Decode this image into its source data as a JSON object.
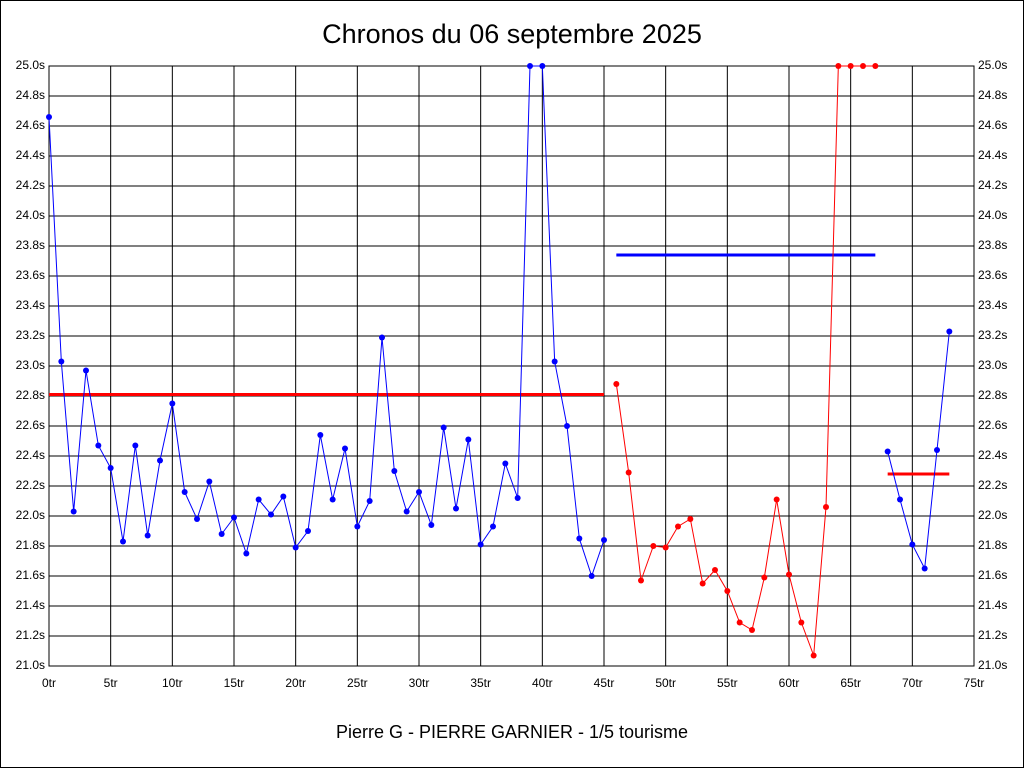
{
  "chart_data": {
    "type": "line",
    "title": "Chronos du 06 septembre 2025",
    "xlabel": "Pierre G - PIERRE GARNIER - 1/5 tourisme",
    "xlim": [
      0,
      75
    ],
    "xticks": [
      {
        "value": 0,
        "label": "0tr"
      },
      {
        "value": 5,
        "label": "5tr"
      },
      {
        "value": 10,
        "label": "10tr"
      },
      {
        "value": 15,
        "label": "15tr"
      },
      {
        "value": 20,
        "label": "20tr"
      },
      {
        "value": 25,
        "label": "25tr"
      },
      {
        "value": 30,
        "label": "30tr"
      },
      {
        "value": 35,
        "label": "35tr"
      },
      {
        "value": 40,
        "label": "40tr"
      },
      {
        "value": 45,
        "label": "45tr"
      },
      {
        "value": 50,
        "label": "50tr"
      },
      {
        "value": 55,
        "label": "55tr"
      },
      {
        "value": 60,
        "label": "60tr"
      },
      {
        "value": 65,
        "label": "65tr"
      },
      {
        "value": 70,
        "label": "70tr"
      },
      {
        "value": 75,
        "label": "75tr"
      }
    ],
    "ylim": [
      21.0,
      25.0
    ],
    "yticks": [
      {
        "value": 21.0,
        "label": "21.0s"
      },
      {
        "value": 21.2,
        "label": "21.2s"
      },
      {
        "value": 21.4,
        "label": "21.4s"
      },
      {
        "value": 21.6,
        "label": "21.6s"
      },
      {
        "value": 21.8,
        "label": "21.8s"
      },
      {
        "value": 22.0,
        "label": "22.0s"
      },
      {
        "value": 22.2,
        "label": "22.2s"
      },
      {
        "value": 22.4,
        "label": "22.4s"
      },
      {
        "value": 22.6,
        "label": "22.6s"
      },
      {
        "value": 22.8,
        "label": "22.8s"
      },
      {
        "value": 23.0,
        "label": "23.0s"
      },
      {
        "value": 23.2,
        "label": "23.2s"
      },
      {
        "value": 23.4,
        "label": "23.4s"
      },
      {
        "value": 23.6,
        "label": "23.6s"
      },
      {
        "value": 23.8,
        "label": "23.8s"
      },
      {
        "value": 24.0,
        "label": "24.0s"
      },
      {
        "value": 24.2,
        "label": "24.2s"
      },
      {
        "value": 24.4,
        "label": "24.4s"
      },
      {
        "value": 24.6,
        "label": "24.6s"
      },
      {
        "value": 24.8,
        "label": "24.8s"
      },
      {
        "value": 25.0,
        "label": "25.0s"
      }
    ],
    "grid": true,
    "series": [
      {
        "color": "#0000ff",
        "x": [
          0,
          1,
          2,
          3,
          4,
          5,
          6,
          7,
          8,
          9,
          10,
          11,
          12,
          13,
          14,
          15,
          16,
          17,
          18,
          19,
          20,
          21,
          22,
          23,
          24,
          25,
          26,
          27,
          28,
          29,
          30,
          31,
          32,
          33,
          34,
          35,
          36,
          37,
          38,
          39,
          40,
          41,
          42,
          43,
          44,
          45
        ],
        "values": [
          24.66,
          23.03,
          22.03,
          22.97,
          22.47,
          22.32,
          21.83,
          22.47,
          21.87,
          22.37,
          22.75,
          22.16,
          21.98,
          22.23,
          21.88,
          21.99,
          21.75,
          22.11,
          22.01,
          22.13,
          21.79,
          21.9,
          22.54,
          22.11,
          22.45,
          21.93,
          22.1,
          23.19,
          22.3,
          22.03,
          22.16,
          21.94,
          22.59,
          22.05,
          22.51,
          21.81,
          21.93,
          22.35,
          22.12,
          25.0,
          25.0,
          23.03,
          22.6,
          21.85,
          21.6,
          21.84
        ]
      },
      {
        "color": "#ff0000",
        "x": [
          46,
          47,
          48,
          49,
          50,
          51,
          52,
          53,
          54,
          55,
          56,
          57,
          58,
          59,
          60,
          61,
          62,
          63,
          64,
          65,
          66,
          67
        ],
        "values": [
          22.88,
          22.29,
          21.57,
          21.8,
          21.79,
          21.93,
          21.98,
          21.55,
          21.64,
          21.5,
          21.29,
          21.24,
          21.59,
          22.11,
          21.61,
          21.29,
          21.07,
          22.06,
          25.0,
          25.0,
          25.0,
          25.0
        ]
      },
      {
        "color": "#0000ff",
        "x": [
          68,
          69,
          70,
          71,
          72,
          73
        ],
        "values": [
          22.43,
          22.11,
          21.81,
          21.65,
          22.44,
          23.23
        ]
      }
    ],
    "averages": [
      {
        "color": "#ff0000",
        "from": 0,
        "to": 45,
        "value": 22.81
      },
      {
        "color": "#0000ff",
        "from": 46,
        "to": 67,
        "value": 23.74
      },
      {
        "color": "#ff0000",
        "from": 68,
        "to": 73,
        "value": 22.28
      }
    ]
  }
}
